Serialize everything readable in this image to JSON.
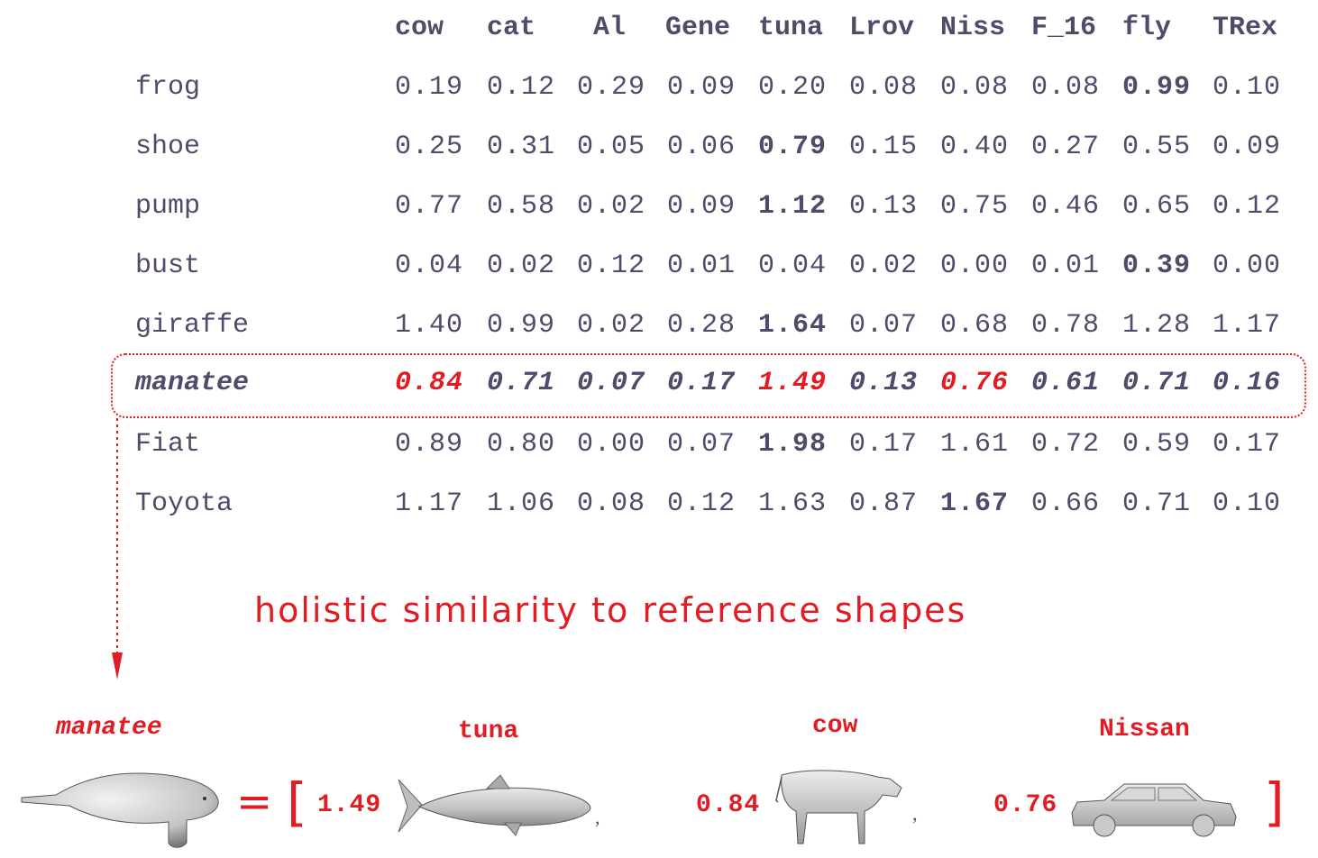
{
  "table": {
    "columns": [
      "cow",
      "cat",
      "Al",
      "Gene",
      "tuna",
      "Lrov",
      "Niss",
      "F_16",
      "fly",
      "TRex"
    ],
    "rows": [
      {
        "label": "frog",
        "values": [
          "0.19",
          "0.12",
          "0.29",
          "0.09",
          "0.20",
          "0.08",
          "0.08",
          "0.08",
          "0.99",
          "0.10"
        ],
        "bold": [
          8
        ]
      },
      {
        "label": "shoe",
        "values": [
          "0.25",
          "0.31",
          "0.05",
          "0.06",
          "0.79",
          "0.15",
          "0.40",
          "0.27",
          "0.55",
          "0.09"
        ],
        "bold": [
          4
        ]
      },
      {
        "label": "pump",
        "values": [
          "0.77",
          "0.58",
          "0.02",
          "0.09",
          "1.12",
          "0.13",
          "0.75",
          "0.46",
          "0.65",
          "0.12"
        ],
        "bold": [
          4
        ]
      },
      {
        "label": "bust",
        "values": [
          "0.04",
          "0.02",
          "0.12",
          "0.01",
          "0.04",
          "0.02",
          "0.00",
          "0.01",
          "0.39",
          "0.00"
        ],
        "bold": [
          8
        ]
      },
      {
        "label": "giraffe",
        "values": [
          "1.40",
          "0.99",
          "0.02",
          "0.28",
          "1.64",
          "0.07",
          "0.68",
          "0.78",
          "1.28",
          "1.17"
        ],
        "bold": [
          4
        ]
      },
      {
        "label": "manatee",
        "values": [
          "0.84",
          "0.71",
          "0.07",
          "0.17",
          "1.49",
          "0.13",
          "0.76",
          "0.61",
          "0.71",
          "0.16"
        ],
        "bold": [],
        "highlight": true,
        "red": [
          0,
          4,
          6
        ]
      },
      {
        "label": "Fiat",
        "values": [
          "0.89",
          "0.80",
          "0.00",
          "0.07",
          "1.98",
          "0.17",
          "1.61",
          "0.72",
          "0.59",
          "0.17"
        ],
        "bold": [
          4
        ]
      },
      {
        "label": "Toyota",
        "values": [
          "1.17",
          "1.06",
          "0.08",
          "0.12",
          "1.63",
          "0.87",
          "1.67",
          "0.66",
          "0.71",
          "0.10"
        ],
        "bold": [
          6
        ]
      }
    ]
  },
  "caption": "holistic similarity to reference shapes",
  "equation": {
    "subject_label": "manatee",
    "equals": "=",
    "open_bracket": "[",
    "close_bracket": "]",
    "terms": [
      {
        "label": "tuna",
        "coefficient": "1.49",
        "icon": "tuna-shape"
      },
      {
        "label": "cow",
        "coefficient": "0.84",
        "icon": "cow-shape"
      },
      {
        "label": "Nissan",
        "coefficient": "0.76",
        "icon": "car-shape"
      }
    ],
    "separator": ","
  },
  "colors": {
    "table_text": "#4e4c6a",
    "accent": "#e31b23"
  }
}
